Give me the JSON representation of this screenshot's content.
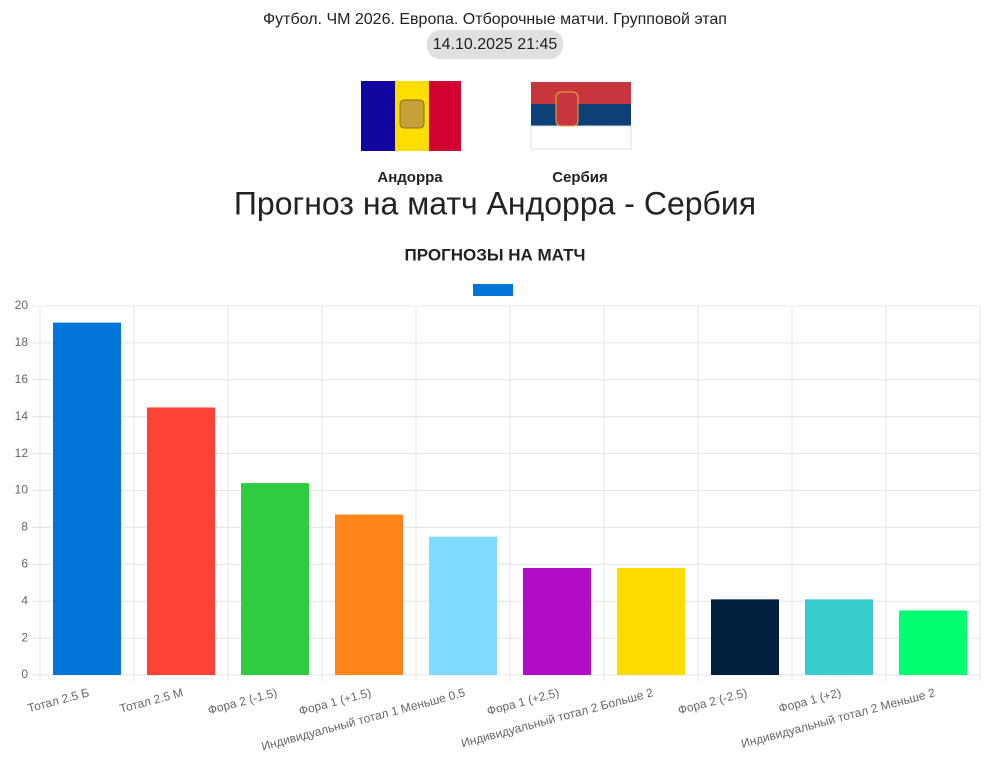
{
  "header": {
    "league": "Футбол. ЧМ 2026. Европа. Отборочные матчи. Групповой этап",
    "datetime": "14.10.2025 21:45",
    "home_team": "Андорра",
    "away_team": "Сербия",
    "title": "Прогноз на матч Андорра - Сербия"
  },
  "chart_data": {
    "type": "bar",
    "title": "ПРОГНОЗЫ НА МАТЧ",
    "categories": [
      "Тотал 2.5 Б",
      "Тотал 2.5 М",
      "Фора 2 (-1.5)",
      "Фора 1 (+1.5)",
      "Индивидуальный тотал 1 Меньше 0.5",
      "Фора 1 (+2.5)",
      "Индивидуальный тотал 2 Больше 2",
      "Фора 2 (-2.5)",
      "Фора 1 (+2)",
      "Индивидуальный тотал 2 Меньше 2"
    ],
    "values": [
      19.1,
      14.5,
      10.4,
      8.7,
      7.5,
      5.8,
      5.8,
      4.1,
      4.1,
      3.5
    ],
    "colors": [
      "#0074d9",
      "#ff4136",
      "#2ecc40",
      "#ff851b",
      "#7fdbff",
      "#b10dc9",
      "#ffdc00",
      "#001f3f",
      "#39cccc",
      "#01ff70"
    ],
    "ylim": [
      0,
      20
    ],
    "yticks": [
      0,
      2,
      4,
      6,
      8,
      10,
      12,
      14,
      16,
      18,
      20
    ],
    "grid": true
  }
}
